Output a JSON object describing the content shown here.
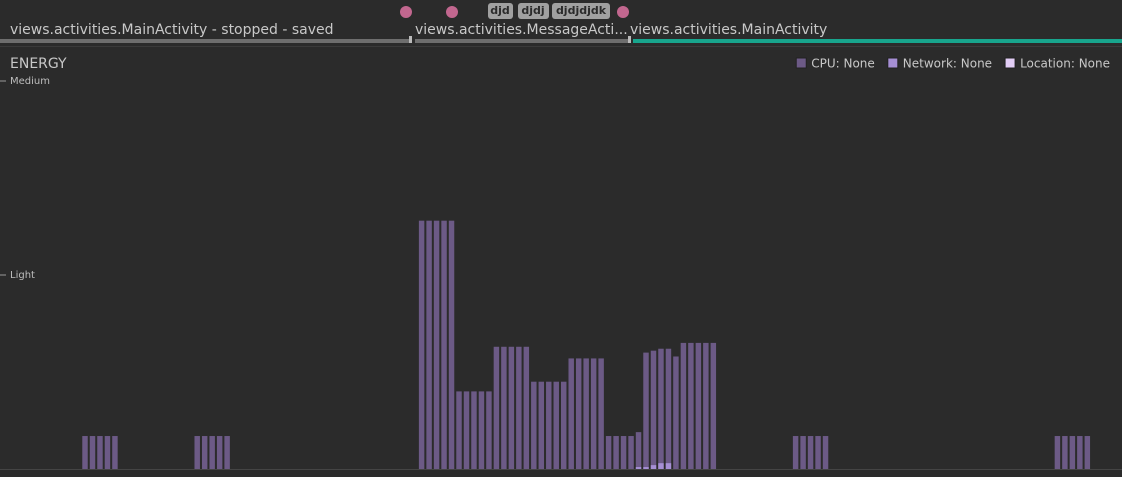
{
  "activities": [
    {
      "label": "views.activities.MainActivity - stopped - saved"
    },
    {
      "label": "views.activities.MessageActi..."
    },
    {
      "label": "views.activities.MainActivity"
    }
  ],
  "events": [
    "djd",
    "djdj",
    "djdjdjdk"
  ],
  "chart_data": {
    "type": "bar",
    "title": "ENERGY",
    "xlim": [
      0,
      150
    ],
    "ylim": [
      0,
      2
    ],
    "yticks": [
      {
        "value": 1,
        "label": "Light"
      },
      {
        "value": 2,
        "label": "Medium"
      }
    ],
    "legend": "top-right",
    "series": [
      {
        "name": "CPU: None",
        "color": "#6c5a86",
        "x": [
          11,
          12,
          13,
          14,
          15,
          26,
          27,
          28,
          29,
          30,
          56,
          57,
          58,
          59,
          60,
          61,
          62,
          63,
          64,
          65,
          66,
          67,
          68,
          69,
          70,
          71,
          72,
          73,
          74,
          75,
          76,
          77,
          78,
          79,
          80,
          81,
          82,
          83,
          84,
          85,
          86,
          87,
          88,
          89,
          90,
          91,
          92,
          93,
          94,
          95,
          106,
          107,
          108,
          109,
          110,
          141,
          142,
          143,
          144,
          145
        ],
        "values": [
          0.17,
          0.17,
          0.17,
          0.17,
          0.17,
          0.17,
          0.17,
          0.17,
          0.17,
          0.17,
          1.28,
          1.28,
          1.28,
          1.28,
          1.28,
          0.4,
          0.4,
          0.4,
          0.4,
          0.4,
          0.63,
          0.63,
          0.63,
          0.63,
          0.63,
          0.45,
          0.45,
          0.45,
          0.45,
          0.45,
          0.57,
          0.57,
          0.57,
          0.57,
          0.57,
          0.17,
          0.17,
          0.17,
          0.17,
          0.19,
          0.6,
          0.61,
          0.62,
          0.62,
          0.58,
          0.65,
          0.65,
          0.65,
          0.65,
          0.65,
          0.17,
          0.17,
          0.17,
          0.17,
          0.17,
          0.17,
          0.17,
          0.17,
          0.17,
          0.17
        ]
      },
      {
        "name": "Network: None",
        "color": "#a68fd4",
        "x": [
          85,
          86,
          87,
          88,
          89
        ],
        "values": [
          0.01,
          0.01,
          0.02,
          0.03,
          0.03
        ]
      },
      {
        "name": "Location: None",
        "color": "#e2cdf5",
        "x": [],
        "values": []
      }
    ]
  }
}
